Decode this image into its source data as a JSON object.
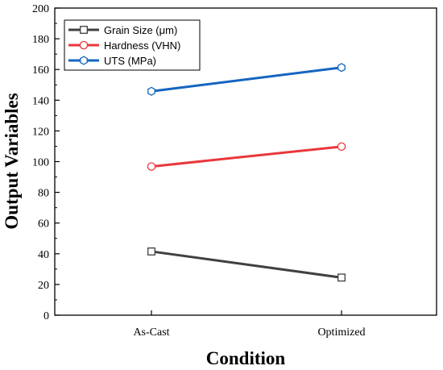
{
  "chart_data": {
    "type": "line",
    "categories": [
      "As-Cast",
      "Optimized"
    ],
    "xlabel": "Condition",
    "ylabel": "Output Variables",
    "ylim": [
      0,
      200
    ],
    "yticks": [
      0,
      20,
      40,
      60,
      80,
      100,
      120,
      140,
      160,
      180,
      200
    ],
    "grid": false,
    "legend_position": "top-left",
    "series": [
      {
        "name": "Grain Size (μm)",
        "values": [
          41.5,
          24.5
        ],
        "color": "#404040",
        "marker": "square"
      },
      {
        "name": "Hardness (VHN)",
        "values": [
          96.8,
          109.8
        ],
        "color": "#e8383b",
        "marker": "circle"
      },
      {
        "name": "UTS (MPa)",
        "values": [
          145.8,
          161.3
        ],
        "color": "#1565c0",
        "marker": "hexagon"
      }
    ]
  }
}
